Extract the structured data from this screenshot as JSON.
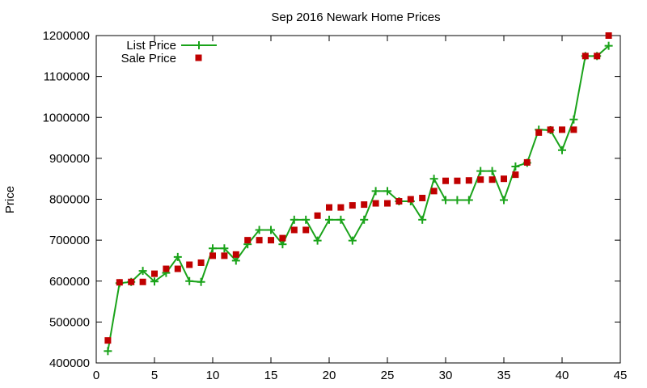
{
  "chart_data": {
    "type": "line",
    "title": "Sep 2016 Newark Home Prices",
    "xlabel": "",
    "ylabel": "Price",
    "xlim": [
      0,
      45
    ],
    "ylim": [
      400000,
      1200000
    ],
    "xticks": [
      "0",
      "5",
      "10",
      "15",
      "20",
      "25",
      "30",
      "35",
      "40",
      "45"
    ],
    "yticks": [
      "400000",
      "500000",
      "600000",
      "700000",
      "800000",
      "900000",
      "1000000",
      "1100000",
      "1200000"
    ],
    "legend_position": "top-left",
    "grid": false,
    "series": [
      {
        "name": "List Price",
        "style": "line+cross",
        "color": "#1aa31a",
        "x": [
          1,
          2,
          3,
          4,
          5,
          6,
          7,
          8,
          9,
          10,
          11,
          12,
          13,
          14,
          15,
          16,
          17,
          18,
          19,
          20,
          21,
          22,
          23,
          24,
          25,
          26,
          27,
          28,
          29,
          30,
          31,
          32,
          33,
          34,
          35,
          36,
          37,
          38,
          39,
          40,
          41,
          42,
          43,
          44
        ],
        "y": [
          429000,
          595000,
          598000,
          625000,
          599000,
          620000,
          659000,
          600000,
          598000,
          680000,
          680000,
          650000,
          690000,
          725000,
          725000,
          690000,
          750000,
          750000,
          699000,
          750000,
          750000,
          699000,
          750000,
          820000,
          820000,
          795000,
          795000,
          750000,
          850000,
          798000,
          798000,
          798000,
          869000,
          869000,
          798000,
          880000,
          889000,
          970000,
          969000,
          920000,
          995000,
          1150000,
          1150000,
          1175000
        ]
      },
      {
        "name": "Sale Price",
        "style": "square",
        "color": "#c00000",
        "x": [
          1,
          2,
          3,
          4,
          5,
          6,
          7,
          8,
          9,
          10,
          11,
          12,
          13,
          14,
          15,
          16,
          17,
          18,
          19,
          20,
          21,
          22,
          23,
          24,
          25,
          26,
          27,
          28,
          29,
          30,
          31,
          32,
          33,
          34,
          35,
          36,
          37,
          38,
          39,
          40,
          41,
          42,
          43,
          44
        ],
        "y": [
          455000,
          597000,
          598000,
          598000,
          618000,
          630000,
          630000,
          640000,
          645000,
          662000,
          662000,
          665000,
          700000,
          700000,
          700000,
          705000,
          725000,
          725000,
          760000,
          780000,
          780000,
          785000,
          787000,
          790000,
          790000,
          795000,
          800000,
          803000,
          820000,
          845000,
          845000,
          846000,
          848000,
          848000,
          850000,
          860000,
          890000,
          963000,
          970000,
          970000,
          970000,
          1150000,
          1150000,
          1200000
        ]
      }
    ]
  }
}
